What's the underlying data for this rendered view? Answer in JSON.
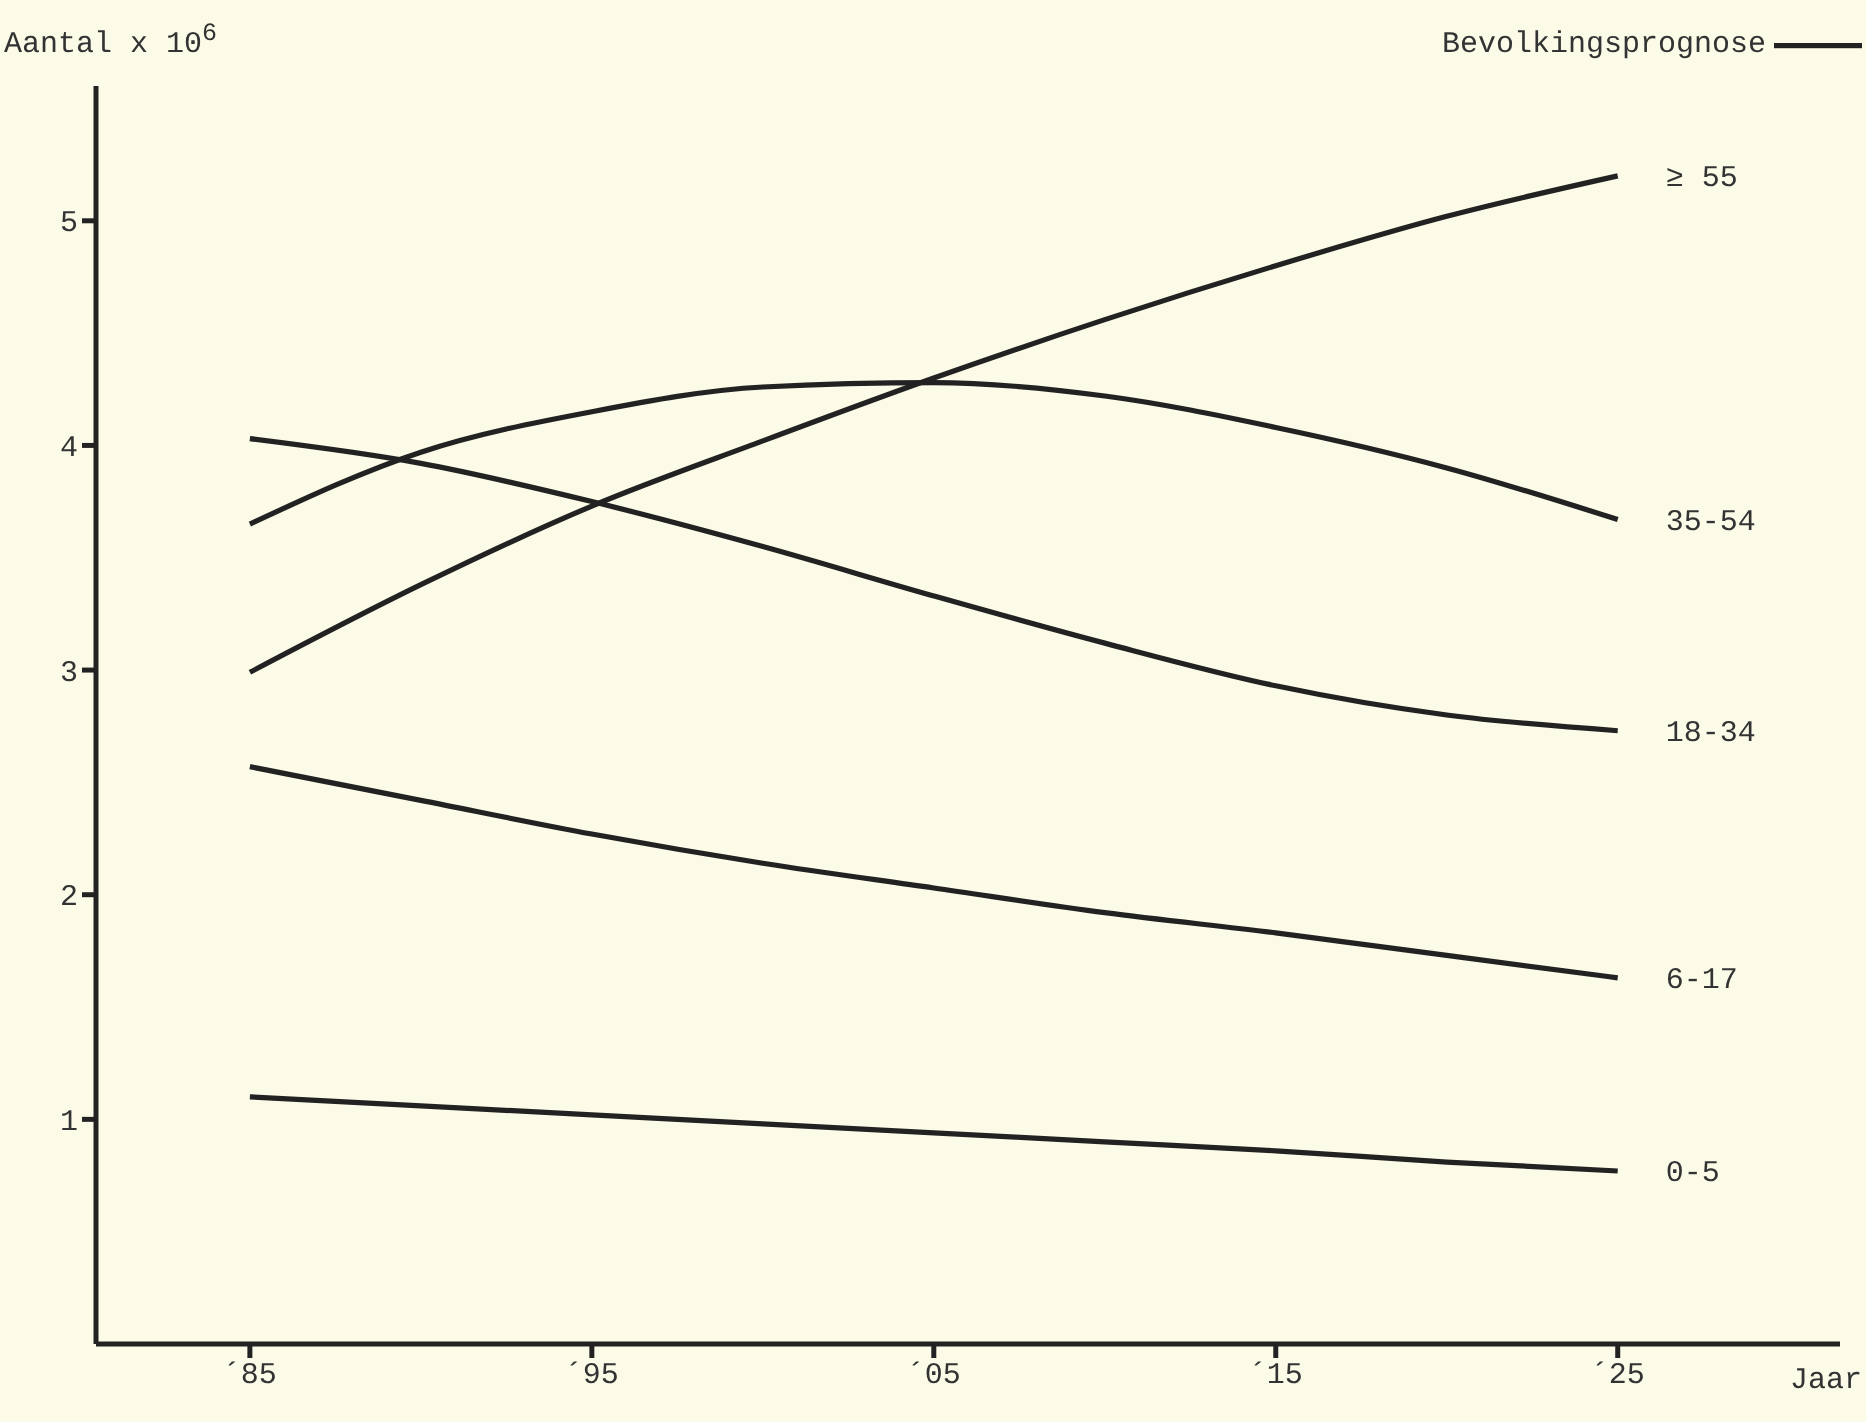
{
  "chart_data": {
    "type": "line",
    "title": "Bevolkingsprognose",
    "ylabel": "Aantal x 10$^{6}$",
    "xlabel": "Jaar",
    "categories": [
      "´85",
      null,
      "´95",
      null,
      "´05",
      null,
      "´15",
      null,
      "´25"
    ],
    "ylim": [
      0,
      5.6
    ],
    "yticks": [
      1,
      2,
      3,
      4,
      5
    ],
    "grid": false,
    "marker": "none",
    "line_style": "solid",
    "series": [
      {
        "name": "≥ 55",
        "color": "#222222",
        "values": [
          2.99,
          3.38,
          3.73,
          4.02,
          4.3,
          4.56,
          4.8,
          5.02,
          5.2
        ]
      },
      {
        "name": "35-54",
        "color": "#222222",
        "values": [
          3.65,
          3.97,
          4.15,
          4.26,
          4.28,
          4.22,
          4.08,
          3.9,
          3.67
        ]
      },
      {
        "name": "18-34",
        "color": "#222222",
        "values": [
          4.03,
          3.92,
          3.75,
          3.55,
          3.33,
          3.12,
          2.93,
          2.8,
          2.73
        ]
      },
      {
        "name": "6-17",
        "color": "#222222",
        "values": [
          2.57,
          2.42,
          2.27,
          2.14,
          2.03,
          1.92,
          1.83,
          1.73,
          1.63
        ]
      },
      {
        "name": "0-5",
        "color": "#222222",
        "values": [
          1.1,
          1.06,
          1.02,
          0.98,
          0.94,
          0.9,
          0.86,
          0.81,
          0.77
        ]
      }
    ]
  }
}
